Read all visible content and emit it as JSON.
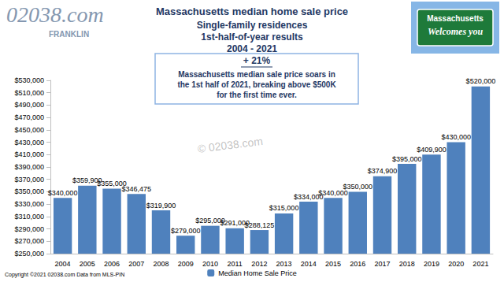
{
  "chart_data": {
    "type": "bar",
    "title": "Massachusetts median home sale price",
    "subtitle": [
      "Single-family residences",
      "1st-half-of-year results",
      "2004 - 2021"
    ],
    "annotations": {
      "logo": "02038.com",
      "logo_sub": "FRANKLIN",
      "sign": [
        "Massachusetts",
        "Welcomes you"
      ],
      "callout_heading": "+ 21%",
      "callout_body": [
        "Massachusetts median sale price soars in",
        "the 1st half of 2021, breaking above $500K",
        "for the first time ever."
      ],
      "watermark": "© 02038.com",
      "footer": "Copyright ©2021 02038.com Data from MLS-PIN"
    },
    "categories": [
      "2004",
      "2005",
      "2006",
      "2007",
      "2008",
      "2009",
      "2010",
      "2011",
      "2012",
      "2013",
      "2014",
      "2015",
      "2016",
      "2017",
      "2018",
      "2019",
      "2020",
      "2021"
    ],
    "series": [
      {
        "name": "Median Home Sale Price",
        "color": "#4f81bd",
        "values": [
          340000,
          359900,
          355000,
          346475,
          319900,
          279000,
          295000,
          291000,
          288125,
          315000,
          334000,
          340000,
          350000,
          374900,
          395000,
          409900,
          430000,
          520000
        ],
        "value_labels": [
          "$340,000",
          "$359,900",
          "$355,000",
          "$346,475",
          "$319,900",
          "$279,000",
          "$295,000",
          "$291,000",
          "$288,125",
          "$315,000",
          "$334,000",
          "$340,000",
          "$350,000",
          "$374,900",
          "$395,000",
          "$409,900",
          "$430,000",
          "$520,000"
        ]
      }
    ],
    "ylim": [
      250000,
      530000
    ],
    "yticks": [
      {
        "value": 250000,
        "label": "$250,000"
      },
      {
        "value": 270000,
        "label": "$270,000"
      },
      {
        "value": 290000,
        "label": "$290,000"
      },
      {
        "value": 310000,
        "label": "$310,000"
      },
      {
        "value": 330000,
        "label": "$330,000"
      },
      {
        "value": 350000,
        "label": "$350,000"
      },
      {
        "value": 370000,
        "label": "$370,000"
      },
      {
        "value": 390000,
        "label": "$390,000"
      },
      {
        "value": 410000,
        "label": "$410,000"
      },
      {
        "value": 430000,
        "label": "$430,000"
      },
      {
        "value": 450000,
        "label": "$450,000"
      },
      {
        "value": 470000,
        "label": "$470,000"
      },
      {
        "value": 490000,
        "label": "$490,000"
      },
      {
        "value": 510000,
        "label": "$510,000"
      },
      {
        "value": 530000,
        "label": "$530,000"
      }
    ],
    "grid": false,
    "legend": "bottom",
    "data_labels": true
  }
}
